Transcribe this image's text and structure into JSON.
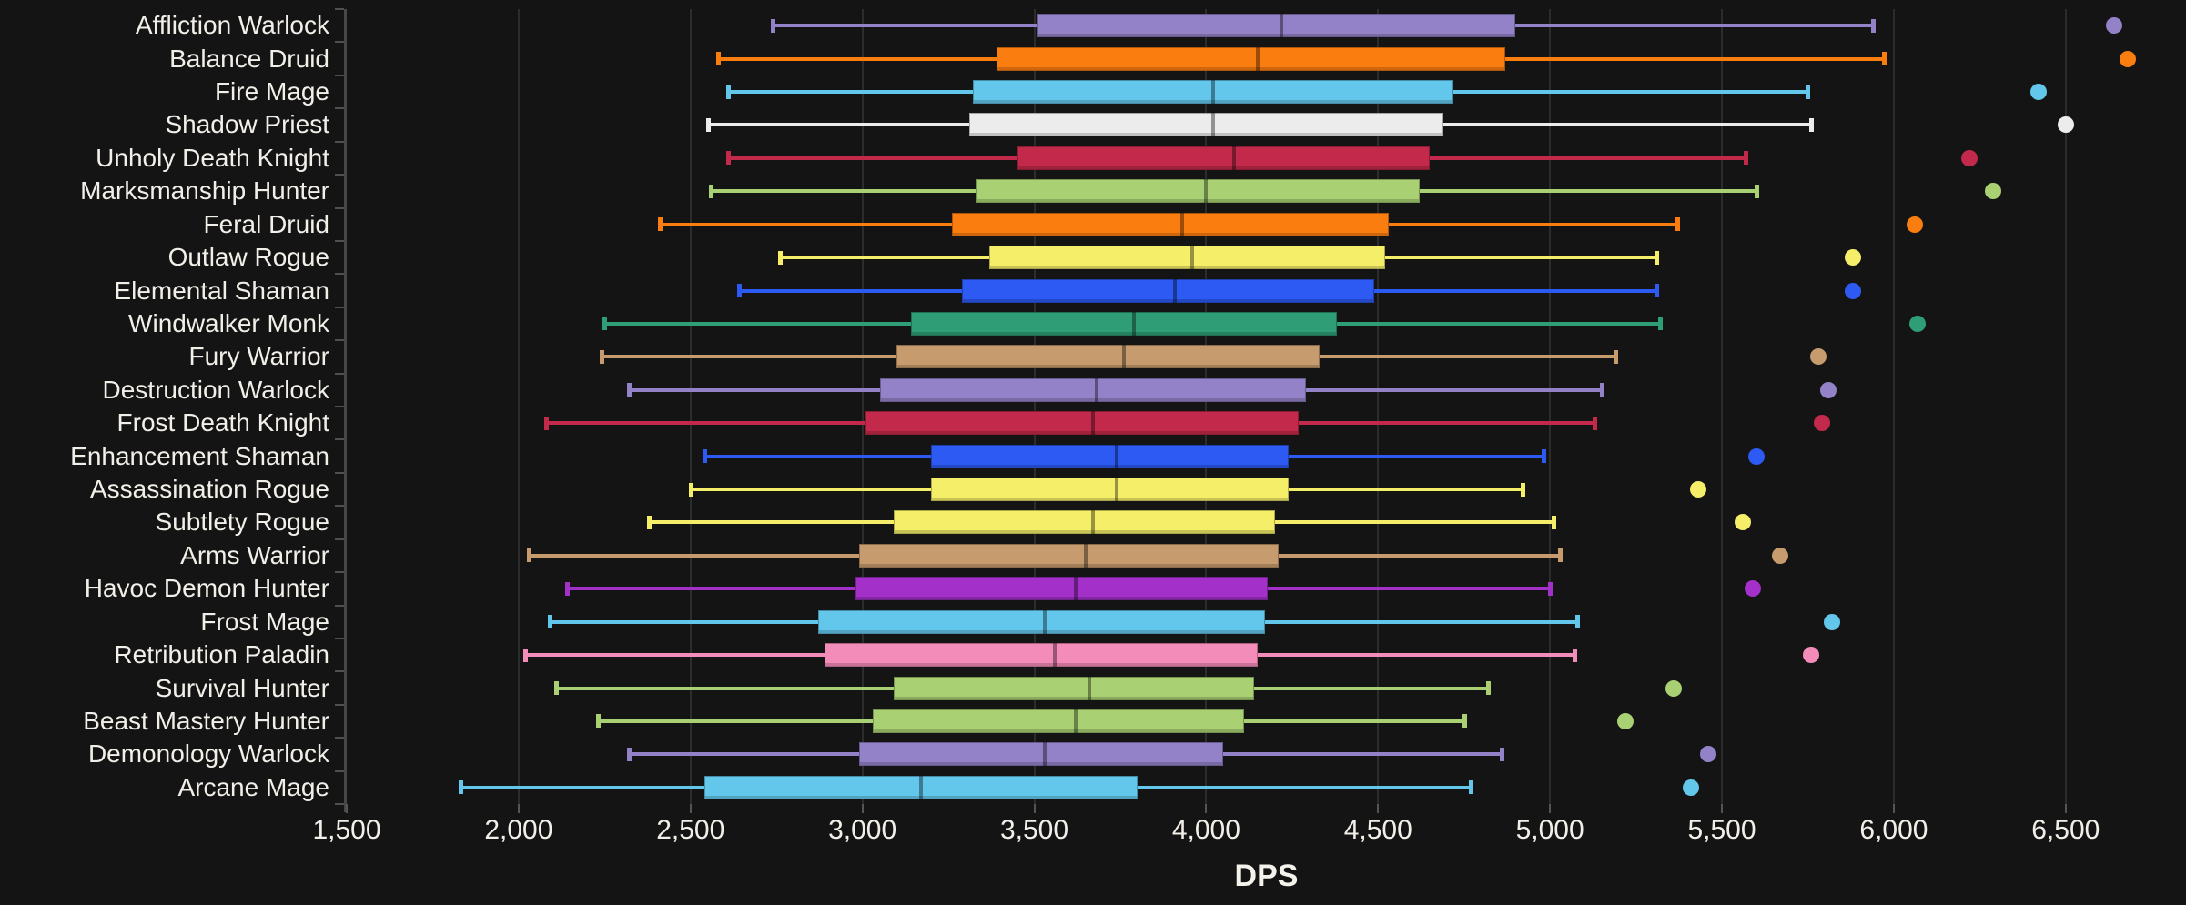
{
  "chart_data": {
    "type": "boxplot",
    "orientation": "horizontal",
    "title": "",
    "xlabel": "DPS",
    "ylabel": "",
    "xlim": [
      1500,
      6850
    ],
    "grid": true,
    "legend": false,
    "background_color": "#141414",
    "grid_color": "#2c2c2c",
    "axis_color": "#4f4f4f",
    "text_color": "#f2efe9",
    "x_ticks": [
      {
        "value": 1500,
        "label": "1,500"
      },
      {
        "value": 2000,
        "label": "2,000"
      },
      {
        "value": 2500,
        "label": "2,500"
      },
      {
        "value": 3000,
        "label": "3,000"
      },
      {
        "value": 3500,
        "label": "3,500"
      },
      {
        "value": 4000,
        "label": "4,000"
      },
      {
        "value": 4500,
        "label": "4,500"
      },
      {
        "value": 5000,
        "label": "5,000"
      },
      {
        "value": 5500,
        "label": "5,500"
      },
      {
        "value": 6000,
        "label": "6,000"
      },
      {
        "value": 6500,
        "label": "6,500"
      }
    ],
    "series": [
      {
        "label": "Affliction Warlock",
        "color": "#9482C9",
        "whisker_low": 2740,
        "q1": 3510,
        "median": 4220,
        "q3": 4900,
        "whisker_high": 5940,
        "outliers": [
          6640
        ]
      },
      {
        "label": "Balance Druid",
        "color": "#FA7D0F",
        "whisker_low": 2580,
        "q1": 3390,
        "median": 4150,
        "q3": 4870,
        "whisker_high": 5970,
        "outliers": [
          6680
        ]
      },
      {
        "label": "Fire Mage",
        "color": "#63C7EC",
        "whisker_low": 2610,
        "q1": 3320,
        "median": 4020,
        "q3": 4720,
        "whisker_high": 5750,
        "outliers": [
          6420
        ]
      },
      {
        "label": "Shadow Priest",
        "color": "#ECECEC",
        "whisker_low": 2550,
        "q1": 3310,
        "median": 4020,
        "q3": 4690,
        "whisker_high": 5760,
        "outliers": [
          6500
        ]
      },
      {
        "label": "Unholy Death Knight",
        "color": "#C3294A",
        "whisker_low": 2610,
        "q1": 3450,
        "median": 4080,
        "q3": 4650,
        "whisker_high": 5570,
        "outliers": [
          6220
        ]
      },
      {
        "label": "Marksmanship Hunter",
        "color": "#A9D173",
        "whisker_low": 2560,
        "q1": 3330,
        "median": 4000,
        "q3": 4620,
        "whisker_high": 5600,
        "outliers": [
          6290
        ]
      },
      {
        "label": "Feral Druid",
        "color": "#FA7D0F",
        "whisker_low": 2410,
        "q1": 3260,
        "median": 3930,
        "q3": 4530,
        "whisker_high": 5370,
        "outliers": [
          6060
        ]
      },
      {
        "label": "Outlaw Rogue",
        "color": "#F5EE68",
        "whisker_low": 2760,
        "q1": 3370,
        "median": 3960,
        "q3": 4520,
        "whisker_high": 5310,
        "outliers": [
          5880
        ]
      },
      {
        "label": "Elemental Shaman",
        "color": "#2D5AF2",
        "whisker_low": 2640,
        "q1": 3290,
        "median": 3910,
        "q3": 4490,
        "whisker_high": 5310,
        "outliers": [
          5880
        ]
      },
      {
        "label": "Windwalker Monk",
        "color": "#2F9E77",
        "whisker_low": 2250,
        "q1": 3140,
        "median": 3790,
        "q3": 4380,
        "whisker_high": 5320,
        "outliers": [
          6070
        ]
      },
      {
        "label": "Fury Warrior",
        "color": "#C69B6D",
        "whisker_low": 2240,
        "q1": 3100,
        "median": 3760,
        "q3": 4330,
        "whisker_high": 5190,
        "outliers": [
          5780
        ]
      },
      {
        "label": "Destruction Warlock",
        "color": "#9482C9",
        "whisker_low": 2320,
        "q1": 3050,
        "median": 3680,
        "q3": 4290,
        "whisker_high": 5150,
        "outliers": [
          5810
        ]
      },
      {
        "label": "Frost Death Knight",
        "color": "#C3294A",
        "whisker_low": 2080,
        "q1": 3010,
        "median": 3670,
        "q3": 4270,
        "whisker_high": 5130,
        "outliers": [
          5790
        ]
      },
      {
        "label": "Enhancement Shaman",
        "color": "#2D5AF2",
        "whisker_low": 2540,
        "q1": 3200,
        "median": 3740,
        "q3": 4240,
        "whisker_high": 4980,
        "outliers": [
          5600
        ]
      },
      {
        "label": "Assassination Rogue",
        "color": "#F5EE68",
        "whisker_low": 2500,
        "q1": 3200,
        "median": 3740,
        "q3": 4240,
        "whisker_high": 4920,
        "outliers": [
          5430
        ]
      },
      {
        "label": "Subtlety Rogue",
        "color": "#F5EE68",
        "whisker_low": 2380,
        "q1": 3090,
        "median": 3670,
        "q3": 4200,
        "whisker_high": 5010,
        "outliers": [
          5560
        ]
      },
      {
        "label": "Arms Warrior",
        "color": "#C69B6D",
        "whisker_low": 2030,
        "q1": 2990,
        "median": 3650,
        "q3": 4210,
        "whisker_high": 5030,
        "outliers": [
          5670
        ]
      },
      {
        "label": "Havoc Demon Hunter",
        "color": "#A330C9",
        "whisker_low": 2140,
        "q1": 2980,
        "median": 3620,
        "q3": 4180,
        "whisker_high": 5000,
        "outliers": [
          5590
        ]
      },
      {
        "label": "Frost Mage",
        "color": "#63C7EC",
        "whisker_low": 2090,
        "q1": 2870,
        "median": 3530,
        "q3": 4170,
        "whisker_high": 5080,
        "outliers": [
          5820
        ]
      },
      {
        "label": "Retribution Paladin",
        "color": "#F48CBA",
        "whisker_low": 2020,
        "q1": 2890,
        "median": 3560,
        "q3": 4150,
        "whisker_high": 5070,
        "outliers": [
          5760
        ]
      },
      {
        "label": "Survival Hunter",
        "color": "#A9D173",
        "whisker_low": 2110,
        "q1": 3090,
        "median": 3660,
        "q3": 4140,
        "whisker_high": 4820,
        "outliers": [
          5360
        ]
      },
      {
        "label": "Beast Mastery Hunter",
        "color": "#A9D173",
        "whisker_low": 2230,
        "q1": 3030,
        "median": 3620,
        "q3": 4110,
        "whisker_high": 4750,
        "outliers": [
          5220
        ]
      },
      {
        "label": "Demonology Warlock",
        "color": "#9482C9",
        "whisker_low": 2320,
        "q1": 2990,
        "median": 3530,
        "q3": 4050,
        "whisker_high": 4860,
        "outliers": [
          5460
        ]
      },
      {
        "label": "Arcane Mage",
        "color": "#63C7EC",
        "whisker_low": 1830,
        "q1": 2540,
        "median": 3170,
        "q3": 3800,
        "whisker_high": 4770,
        "outliers": [
          5410
        ]
      }
    ]
  }
}
